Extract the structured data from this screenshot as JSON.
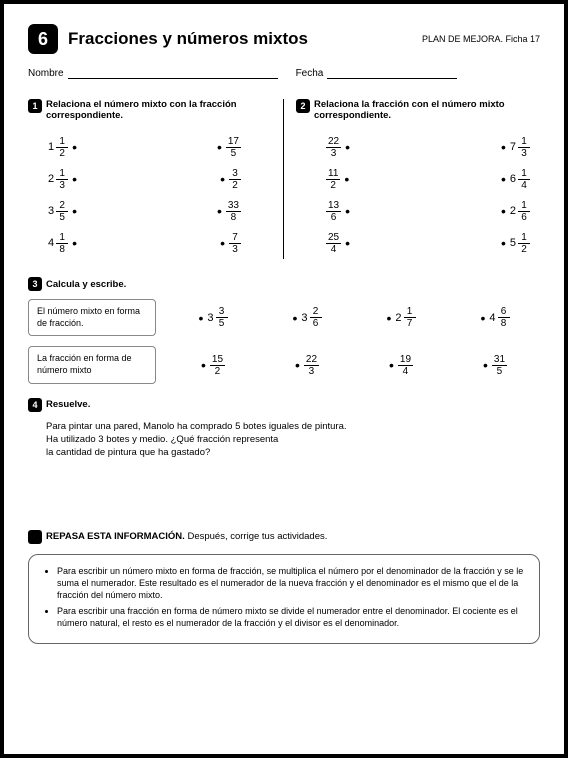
{
  "header": {
    "number": "6",
    "title": "Fracciones y números mixtos",
    "plan": "PLAN DE MEJORA. Ficha 17"
  },
  "fields": {
    "nombre_label": "Nombre",
    "fecha_label": "Fecha"
  },
  "ex1": {
    "num": "1",
    "text": "Relaciona el número mixto con la fracción correspondiente.",
    "left": [
      {
        "w": "1",
        "n": "1",
        "d": "2"
      },
      {
        "w": "2",
        "n": "1",
        "d": "3"
      },
      {
        "w": "3",
        "n": "2",
        "d": "5"
      },
      {
        "w": "4",
        "n": "1",
        "d": "8"
      }
    ],
    "right": [
      {
        "n": "17",
        "d": "5"
      },
      {
        "n": "3",
        "d": "2"
      },
      {
        "n": "33",
        "d": "8"
      },
      {
        "n": "7",
        "d": "3"
      }
    ]
  },
  "ex2": {
    "num": "2",
    "text": "Relaciona la fracción con el número mixto correspondiente.",
    "left": [
      {
        "n": "22",
        "d": "3"
      },
      {
        "n": "11",
        "d": "2"
      },
      {
        "n": "13",
        "d": "6"
      },
      {
        "n": "25",
        "d": "4"
      }
    ],
    "right": [
      {
        "w": "7",
        "n": "1",
        "d": "3"
      },
      {
        "w": "6",
        "n": "1",
        "d": "4"
      },
      {
        "w": "2",
        "n": "1",
        "d": "6"
      },
      {
        "w": "5",
        "n": "1",
        "d": "2"
      }
    ]
  },
  "ex3": {
    "num": "3",
    "text": "Calcula y escribe.",
    "row1": {
      "box": "El número mixto en forma de fracción.",
      "items": [
        {
          "w": "3",
          "n": "3",
          "d": "5"
        },
        {
          "w": "3",
          "n": "2",
          "d": "6"
        },
        {
          "w": "2",
          "n": "1",
          "d": "7"
        },
        {
          "w": "4",
          "n": "6",
          "d": "8"
        }
      ]
    },
    "row2": {
      "box": "La fracción en forma de número mixto",
      "items": [
        {
          "n": "15",
          "d": "2"
        },
        {
          "n": "22",
          "d": "3"
        },
        {
          "n": "19",
          "d": "4"
        },
        {
          "n": "31",
          "d": "5"
        }
      ]
    }
  },
  "ex4": {
    "num": "4",
    "text": "Resuelve.",
    "body1": "Para pintar una pared, Manolo ha comprado 5 botes iguales de pintura.",
    "body2": "Ha utilizado 3 botes y medio. ¿Qué fracción representa",
    "body3": "la cantidad de pintura que ha gastado?"
  },
  "repasa": {
    "bold": "REPASA ESTA INFORMACIÓN.",
    "rest": " Después, corrige tus actividades.",
    "b1": "Para escribir un número mixto en forma de fracción, se multiplica el número por el denominador de la fracción y se le suma el numerador. Este resultado es el numerador de la nueva fracción y el denominador es el mismo que el de la fracción del número mixto.",
    "b2": "Para escribir una fracción en forma de número mixto se divide el numerador entre el denominador. El cociente es el número natural, el resto es el numerador de la fracción y el divisor es el denominador."
  }
}
